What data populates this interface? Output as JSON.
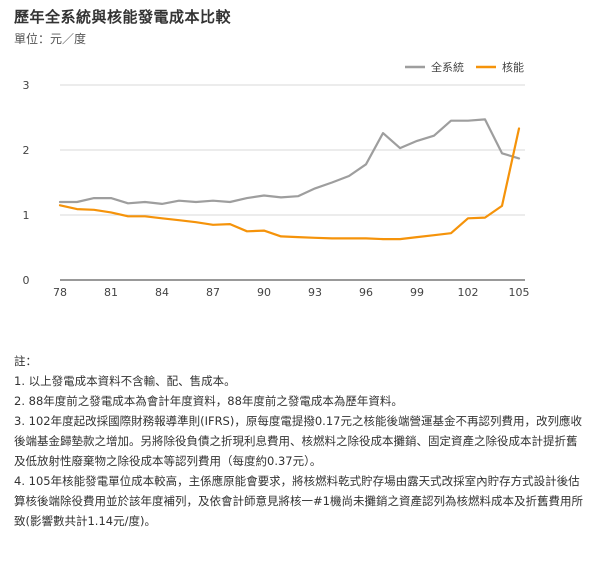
{
  "title": "歷年全系統與核能發電成本比較",
  "subtitle": "單位：元／度",
  "chart_data": {
    "type": "line",
    "title": "歷年全系統與核能發電成本比較",
    "unit_label": "單位：元／度",
    "x": [
      78,
      79,
      80,
      81,
      82,
      83,
      84,
      85,
      86,
      87,
      88,
      89,
      90,
      91,
      92,
      93,
      94,
      95,
      96,
      97,
      98,
      99,
      100,
      101,
      102,
      103,
      104,
      105
    ],
    "x_ticks": [
      78,
      81,
      84,
      87,
      90,
      93,
      96,
      99,
      102,
      105
    ],
    "y_ticks": [
      0,
      1,
      2,
      3
    ],
    "ylim": [
      0,
      3
    ],
    "xlim": [
      78,
      105
    ],
    "grid": "horizontal",
    "legend_position": "top-right",
    "series": [
      {
        "name": "全系統",
        "color": "#9e9e9e",
        "values": [
          1.2,
          1.2,
          1.26,
          1.26,
          1.18,
          1.2,
          1.17,
          1.22,
          1.2,
          1.22,
          1.2,
          1.26,
          1.3,
          1.27,
          1.29,
          1.41,
          1.5,
          1.6,
          1.78,
          2.26,
          2.03,
          2.14,
          2.22,
          2.45,
          2.45,
          2.47,
          1.95,
          1.87
        ]
      },
      {
        "name": "核能",
        "color": "#f5930a",
        "values": [
          1.15,
          1.09,
          1.08,
          1.04,
          0.98,
          0.98,
          0.95,
          0.92,
          0.89,
          0.85,
          0.86,
          0.75,
          0.76,
          0.67,
          0.66,
          0.65,
          0.64,
          0.64,
          0.64,
          0.63,
          0.63,
          0.66,
          0.69,
          0.72,
          0.95,
          0.96,
          1.14,
          2.33
        ]
      }
    ]
  },
  "notes": {
    "heading": "註：",
    "items": [
      "1. 以上發電成本資料不含輸、配、售成本。",
      "2. 88年度前之發電成本為會計年度資料，88年度前之發電成本為歷年資料。",
      "3. 102年度起改採國際財務報導準則(IFRS)，原每度電提撥0.17元之核能後端營運基金不再認列費用，改列應收 後端基金歸墊款之增加。另將除役負債之折現利息費用、核燃料之除役成本攤銷、固定資產之除役成本計提折舊及低放射性廢棄物之除役成本等認列費用（每度約0.37元）。",
      "4. 105年核能發電單位成本較高，主係應原能會要求，將核燃料乾式貯存場由露天式改採室內貯存方式設計後估算核後端除役費用並於該年度補列，及依會計師意見將核一#1機尚未攤銷之資產認列為核燃料成本及折舊費用所致(影響數共計1.14元/度)。"
    ]
  }
}
